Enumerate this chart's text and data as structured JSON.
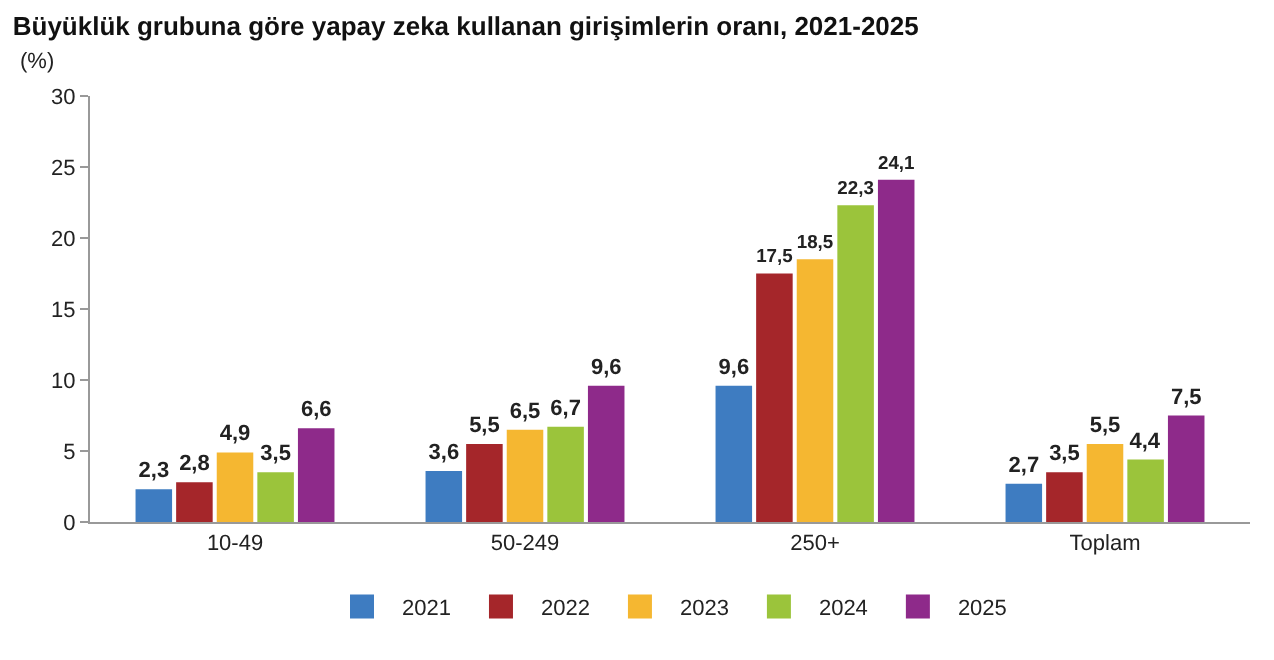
{
  "chart_data": {
    "type": "bar",
    "title": "Büyüklük grubuna göre yapay zeka kullanan girişimlerin oranı, 2021-2025",
    "ylabel": "(%)",
    "categories": [
      "10-49",
      "50-249",
      "250+",
      "Toplam"
    ],
    "series": [
      {
        "name": "2021",
        "color": "#3e7cc1",
        "values": [
          2.3,
          3.6,
          9.6,
          2.7
        ],
        "value_labels": [
          "2,3",
          "3,6",
          "9,6",
          "2,7"
        ]
      },
      {
        "name": "2022",
        "color": "#a5262a",
        "values": [
          2.8,
          5.5,
          17.5,
          3.5
        ],
        "value_labels": [
          "2,8",
          "5,5",
          "17,5",
          "3,5"
        ]
      },
      {
        "name": "2023",
        "color": "#f5b731",
        "values": [
          4.9,
          6.5,
          18.5,
          5.5
        ],
        "value_labels": [
          "4,9",
          "6,5",
          "18,5",
          "5,5"
        ]
      },
      {
        "name": "2024",
        "color": "#9bc43b",
        "values": [
          3.5,
          6.7,
          22.3,
          4.4
        ],
        "value_labels": [
          "3,5",
          "6,7",
          "22,3",
          "4,4"
        ]
      },
      {
        "name": "2025",
        "color": "#8e2a8a",
        "values": [
          6.6,
          9.6,
          24.1,
          7.5
        ],
        "value_labels": [
          "6,6",
          "9,6",
          "24,1",
          "7,5"
        ]
      }
    ],
    "ylim": [
      0,
      30
    ],
    "yticks": [
      0,
      5,
      10,
      15,
      20,
      25,
      30
    ],
    "grid": false,
    "legend": "bottom"
  }
}
